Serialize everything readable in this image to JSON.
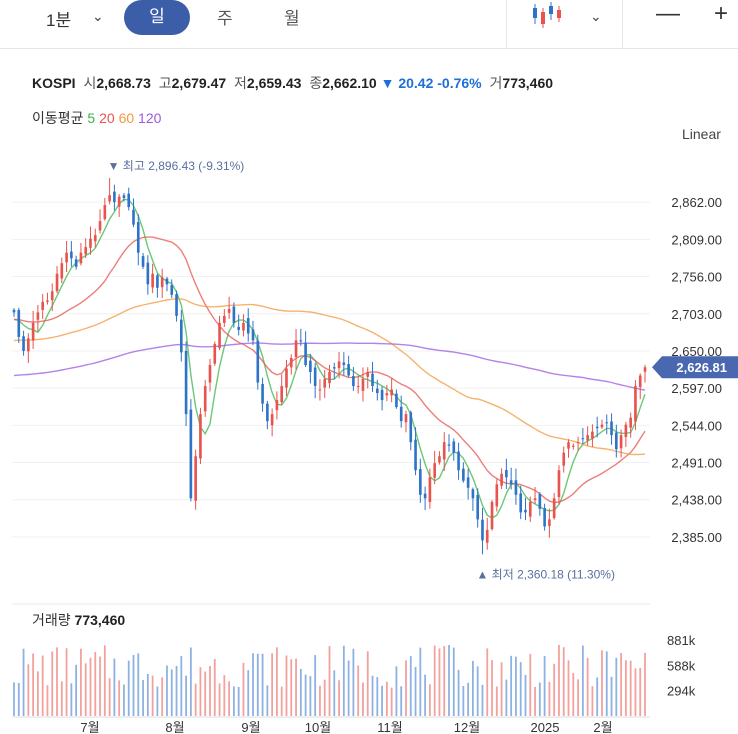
{
  "toolbar": {
    "interval": "1분",
    "tabs": [
      "일",
      "주",
      "월"
    ],
    "active_tab": "일",
    "zoom_out": "—",
    "zoom_in": "+"
  },
  "quote": {
    "name": "KOSPI",
    "open_label": "시",
    "open": "2,668.73",
    "high_label": "고",
    "high": "2,679.47",
    "low_label": "저",
    "low": "2,659.43",
    "close_label": "종",
    "close": "2,662.10",
    "change": "▼ 20.42",
    "change_pct": "-0.76%",
    "volume_label": "거",
    "volume": "773,460"
  },
  "moving_avg": {
    "label": "이동평균",
    "periods": [
      {
        "value": "5",
        "color": "#3ab54a"
      },
      {
        "value": "20",
        "color": "#e8534d"
      },
      {
        "value": "60",
        "color": "#f19a3e"
      },
      {
        "value": "120",
        "color": "#9b59e0"
      }
    ]
  },
  "scale_mode": "Linear",
  "colors": {
    "up": "#e8534d",
    "down": "#2f73c9",
    "accent": "#3c5ea8",
    "current_price_tag": "#4a68b0"
  },
  "chart_data": {
    "type": "candlestick",
    "y_ticks": [
      "2,862.00",
      "2,809.00",
      "2,756.00",
      "2,703.00",
      "2,650.00",
      "2,597.00",
      "2,544.00",
      "2,491.00",
      "2,438.00",
      "2,385.00"
    ],
    "y_tick_values": [
      2862,
      2809,
      2756,
      2703,
      2650,
      2597,
      2544,
      2491,
      2438,
      2385
    ],
    "ylim": [
      2335,
      2905
    ],
    "x_ticks": [
      "7월",
      "8월",
      "9월",
      "10월",
      "11월",
      "12월",
      "2025",
      "2월"
    ],
    "current_price": "2,626.81",
    "current_price_value": 2626.81,
    "high_annotation": "▼ 최고 2,896.43 (-9.31%)",
    "high_value": 2896.43,
    "low_annotation": "▲ 최저 2,360.18 (11.30%)",
    "low_value": 2360.18,
    "approx_closes": [
      2705,
      2670,
      2650,
      2668,
      2690,
      2705,
      2720,
      2722,
      2735,
      2760,
      2775,
      2790,
      2782,
      2770,
      2790,
      2798,
      2810,
      2815,
      2835,
      2858,
      2872,
      2862,
      2870,
      2868,
      2855,
      2830,
      2790,
      2770,
      2745,
      2760,
      2740,
      2755,
      2745,
      2730,
      2700,
      2648,
      2560,
      2440,
      2500,
      2560,
      2600,
      2630,
      2660,
      2690,
      2700,
      2710,
      2690,
      2680,
      2690,
      2675,
      2665,
      2605,
      2575,
      2550,
      2560,
      2580,
      2600,
      2625,
      2640,
      2665,
      2665,
      2630,
      2620,
      2600,
      2595,
      2610,
      2620,
      2625,
      2635,
      2630,
      2615,
      2600,
      2600,
      2610,
      2620,
      2600,
      2590,
      2580,
      2590,
      2595,
      2570,
      2550,
      2560,
      2520,
      2480,
      2445,
      2440,
      2470,
      2490,
      2500,
      2520,
      2515,
      2505,
      2480,
      2465,
      2455,
      2440,
      2410,
      2380,
      2395,
      2435,
      2460,
      2475,
      2470,
      2460,
      2445,
      2420,
      2420,
      2435,
      2440,
      2425,
      2400,
      2410,
      2440,
      2480,
      2505,
      2520,
      2515,
      2520,
      2525,
      2530,
      2535,
      2540,
      2545,
      2548,
      2530,
      2510,
      2530,
      2545,
      2555,
      2600,
      2615,
      2626.81
    ],
    "volume": {
      "label": "거래량",
      "last": "773,460",
      "y_ticks": [
        "881k",
        "588k",
        "294k"
      ],
      "y_tick_values": [
        881,
        588,
        294
      ],
      "unit": "k"
    }
  }
}
